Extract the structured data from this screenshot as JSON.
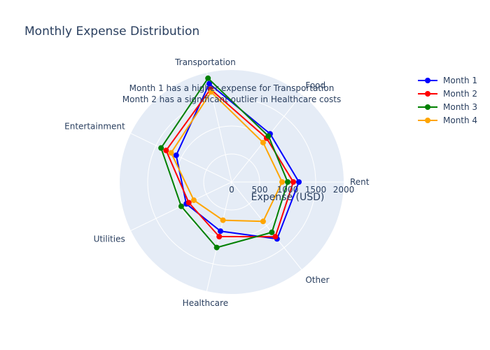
{
  "chart_data": {
    "type": "radar",
    "title": "Monthly Expense Distribution",
    "categories": [
      "Rent",
      "Food",
      "Transportation",
      "Entertainment",
      "Utilities",
      "Healthcare",
      "Other"
    ],
    "radial_axis": {
      "title": "Expense (USD)",
      "range": [
        0,
        2000
      ],
      "ticks": [
        0,
        500,
        1000,
        1500,
        2000
      ]
    },
    "series": [
      {
        "name": "Month 1",
        "color": "#0000ff",
        "values": [
          1200,
          1100,
          1800,
          1100,
          900,
          900,
          1300
        ]
      },
      {
        "name": "Month 2",
        "color": "#ff0000",
        "values": [
          1100,
          1000,
          1700,
          1300,
          850,
          1000,
          1250
        ]
      },
      {
        "name": "Month 3",
        "color": "#008000",
        "values": [
          1000,
          1050,
          1900,
          1400,
          1000,
          1200,
          1150
        ]
      },
      {
        "name": "Month 4",
        "color": "#ffa500",
        "values": [
          900,
          900,
          1650,
          1200,
          750,
          700,
          900
        ]
      }
    ],
    "annotations": [
      "Month 1 has a higher expense for Transportation",
      "Month 2 has a significant outlier in Healthcare costs"
    ],
    "legend_position": "top-right"
  }
}
